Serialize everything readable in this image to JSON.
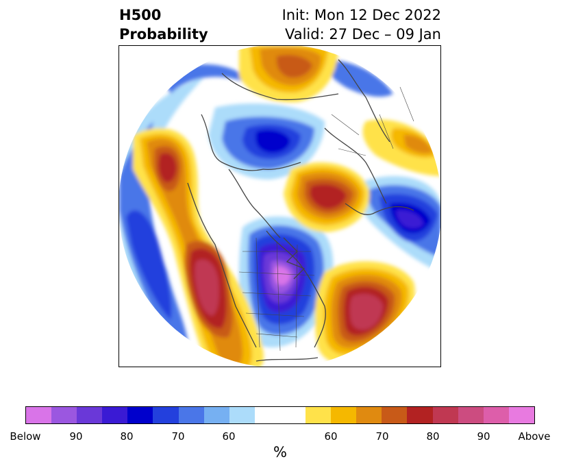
{
  "title": {
    "left_line1": "H500",
    "left_line2": "Probability",
    "right_line1": "Init: Mon 12 Dec 2022",
    "right_line2": "Valid: 27 Dec – 09 Jan"
  },
  "colorbar": {
    "ticks": [
      "Below",
      "90",
      "80",
      "70",
      "60",
      "60",
      "70",
      "80",
      "90",
      "Above"
    ],
    "unit_label": "%",
    "below_colors": [
      "#d974e8",
      "#9b57e0",
      "#6a38d8",
      "#3a1ad4",
      "#0000cc",
      "#2340dd",
      "#4a76e8",
      "#76b0f2",
      "#acdcfa"
    ],
    "neutral_color": "#ffffff",
    "above_colors": [
      "#ffe24a",
      "#f5b800",
      "#e08a10",
      "#c85a18",
      "#b22222",
      "#c03852",
      "#cc4c80",
      "#dd5eaa",
      "#e87ae0"
    ]
  }
}
